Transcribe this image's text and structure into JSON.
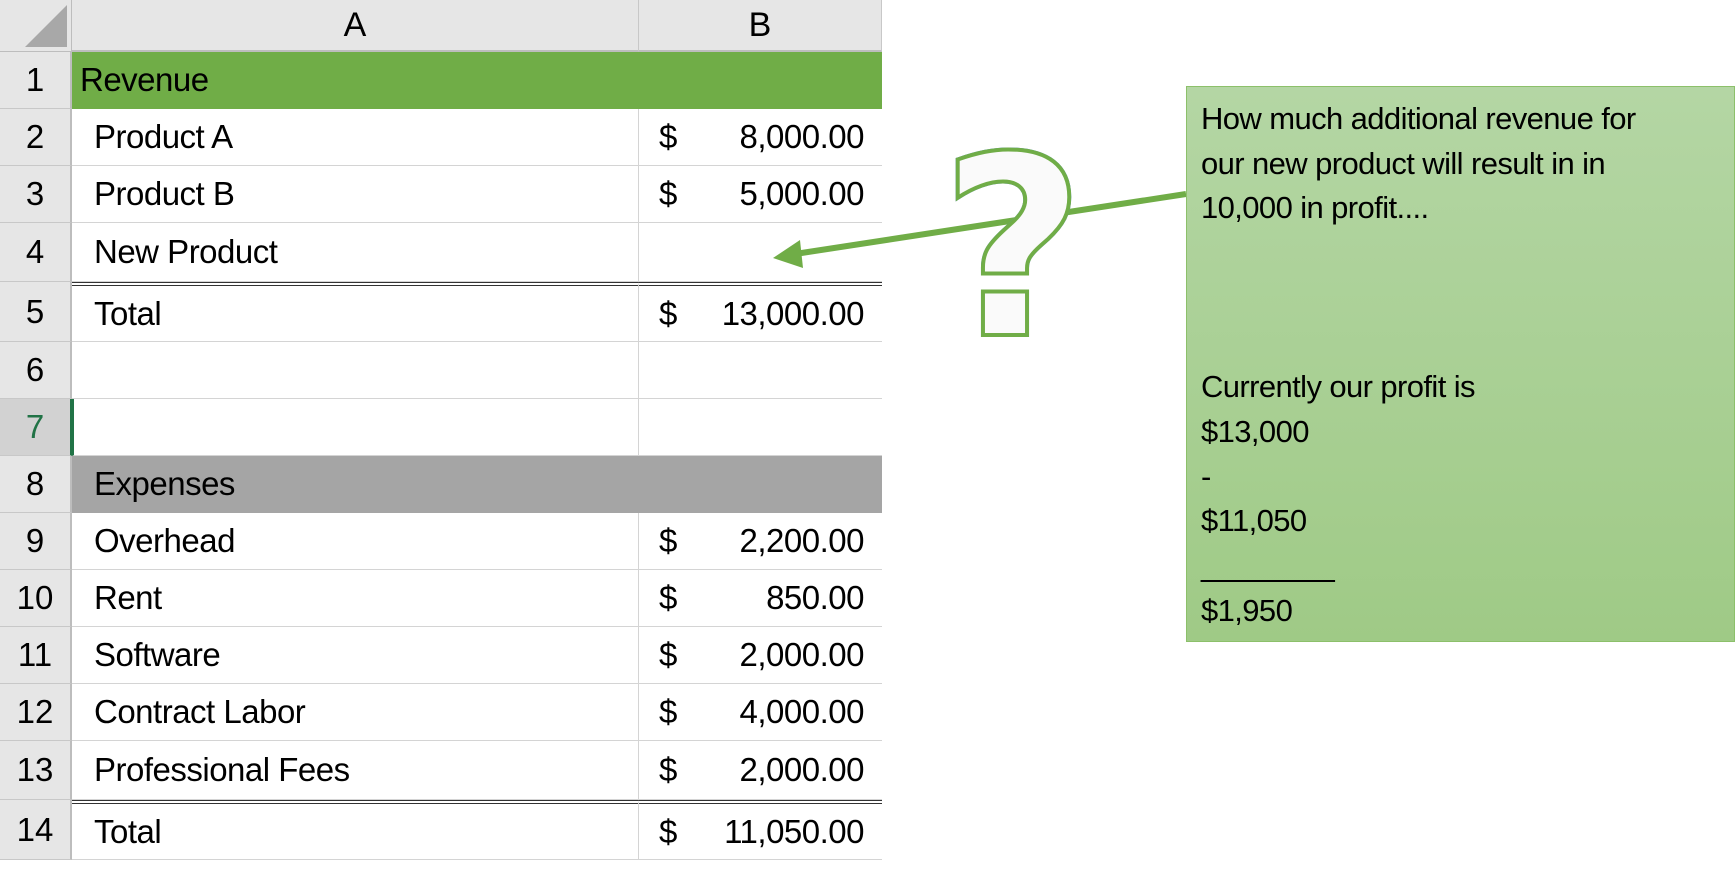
{
  "columns": [
    "A",
    "B"
  ],
  "rows": [
    {
      "num": "1",
      "a": "Revenue",
      "b_sym": "",
      "b_val": "",
      "style": "green"
    },
    {
      "num": "2",
      "a": "Product A",
      "b_sym": "$",
      "b_val": "8,000.00"
    },
    {
      "num": "3",
      "a": "Product B",
      "b_sym": "$",
      "b_val": "5,000.00"
    },
    {
      "num": "4",
      "a": "New Product",
      "b_sym": "",
      "b_val": ""
    },
    {
      "num": "5",
      "a": "Total",
      "b_sym": "$",
      "b_val": "13,000.00"
    },
    {
      "num": "6",
      "a": "",
      "b_sym": "",
      "b_val": ""
    },
    {
      "num": "7",
      "a": "",
      "b_sym": "",
      "b_val": "",
      "selected": true
    },
    {
      "num": "8",
      "a": "Expenses",
      "b_sym": "",
      "b_val": "",
      "style": "grey"
    },
    {
      "num": "9",
      "a": "Overhead",
      "b_sym": "$",
      "b_val": "2,200.00"
    },
    {
      "num": "10",
      "a": "Rent",
      "b_sym": "$",
      "b_val": "850.00"
    },
    {
      "num": "11",
      "a": "Software",
      "b_sym": "$",
      "b_val": "2,000.00"
    },
    {
      "num": "12",
      "a": "Contract Labor",
      "b_sym": "$",
      "b_val": "4,000.00"
    },
    {
      "num": "13",
      "a": "Professional Fees",
      "b_sym": "$",
      "b_val": "2,000.00"
    },
    {
      "num": "14",
      "a": "Total",
      "b_sym": "$",
      "b_val": "11,050.00"
    }
  ],
  "note": {
    "lines": [
      "How much additional revenue for",
      "our new product will result in in",
      "10,000 in profit....",
      "",
      "",
      "",
      "Currently our profit is",
      "$13,000",
      "-",
      "$11,050",
      "________",
      "$1,950"
    ]
  },
  "callout": {
    "icon": "question-mark-icon",
    "arrow_color": "#70ad47"
  },
  "colors": {
    "revenue_header": "#70ad47",
    "expenses_header": "#a5a5a5",
    "note_bg": "#a9d08e"
  }
}
